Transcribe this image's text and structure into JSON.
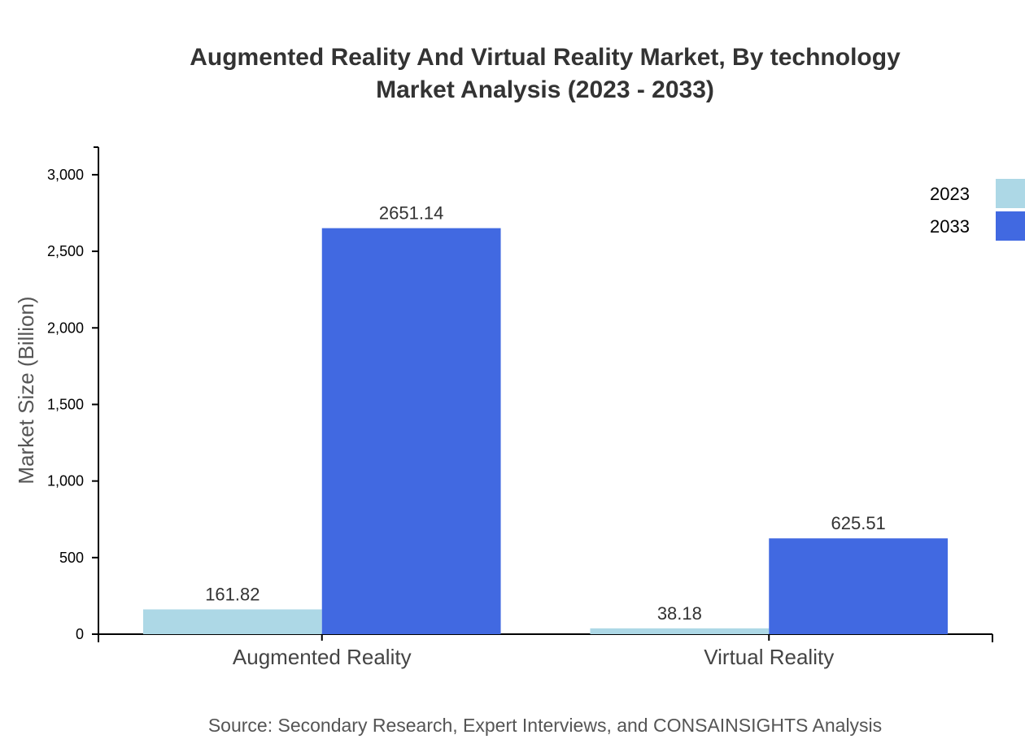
{
  "chart_data": {
    "type": "bar",
    "title": "Augmented Reality And Virtual Reality Market, By technology",
    "subtitle": "Market Analysis (2023 - 2033)",
    "xlabel": "",
    "ylabel": "Market Size (Billion)",
    "categories": [
      "Augmented Reality",
      "Virtual Reality"
    ],
    "series": [
      {
        "name": "2023",
        "color": "#add8e6",
        "values": [
          161.82,
          38.18
        ]
      },
      {
        "name": "2033",
        "color": "#4169e1",
        "values": [
          2651.14,
          625.51
        ]
      }
    ],
    "ylim": [
      0,
      3180
    ],
    "yticks": [
      0,
      500,
      1000,
      1500,
      2000,
      2500,
      3000
    ],
    "ytick_labels": [
      "0",
      "500",
      "1,000",
      "1,500",
      "2,000",
      "2,500",
      "3,000"
    ],
    "grid": false,
    "legend": "top-right",
    "source": "Source: Secondary Research, Expert Interviews, and CONSAINSIGHTS Analysis"
  }
}
